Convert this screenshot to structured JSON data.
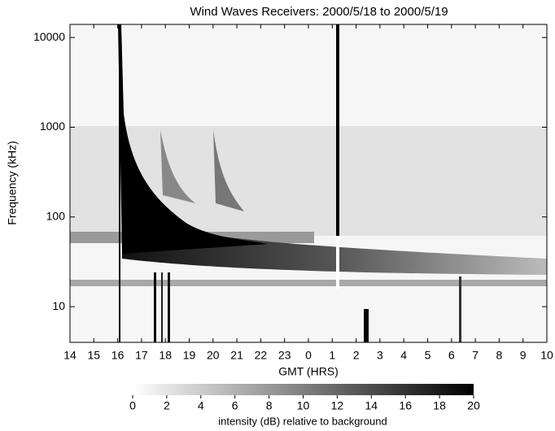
{
  "chart_data": {
    "type": "spectrogram",
    "title": "Wind Waves Receivers: 2000/5/18 to 2000/5/19",
    "x_label": "GMT (HRS)",
    "y_label": "Frequency (kHz)",
    "xlim": [
      14,
      34
    ],
    "xticks": [
      14,
      15,
      16,
      17,
      18,
      19,
      20,
      21,
      22,
      23,
      {
        "value": 24,
        "label": "0"
      },
      {
        "value": 25,
        "label": "1"
      },
      {
        "value": 26,
        "label": "2"
      },
      {
        "value": 27,
        "label": "3"
      },
      {
        "value": 28,
        "label": "4"
      },
      {
        "value": 29,
        "label": "5"
      },
      {
        "value": 30,
        "label": "6"
      },
      {
        "value": 31,
        "label": "7"
      },
      {
        "value": 32,
        "label": "8"
      },
      {
        "value": 33,
        "label": "9"
      },
      {
        "value": 34,
        "label": "10"
      }
    ],
    "ylim": [
      4,
      14000
    ],
    "yticks": [
      10,
      100,
      1000,
      10000
    ],
    "ylog": true,
    "colorbar": {
      "label": "intensity (dB) relative to background",
      "lim": [
        0,
        20
      ],
      "ticks": [
        0,
        2,
        4,
        6,
        8,
        10,
        12,
        14,
        16,
        18,
        20
      ],
      "colors": [
        "#ffffff",
        "#000000"
      ]
    }
  }
}
